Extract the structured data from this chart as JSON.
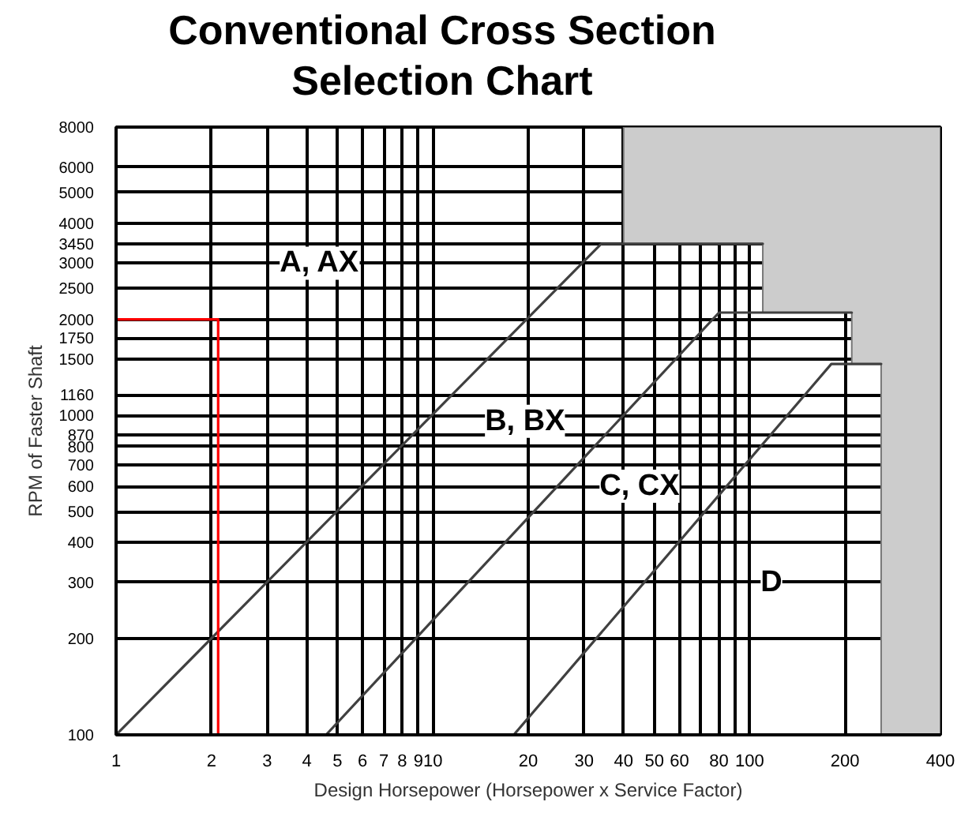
{
  "chart_data": {
    "type": "line",
    "title": "Conventional Cross Section\nSelection Chart",
    "xlabel": "Design Horsepower (Horsepower x Service Factor)",
    "ylabel": "RPM of Faster Shaft",
    "log": "xy",
    "xlim": [
      1,
      400
    ],
    "ylim": [
      100,
      8000
    ],
    "xticks": [
      1,
      2,
      3,
      4,
      5,
      6,
      7,
      8,
      9,
      10,
      20,
      30,
      40,
      50,
      60,
      {
        "value": 70,
        "label": null
      },
      80,
      {
        "value": 90,
        "label": null
      },
      100,
      200,
      400
    ],
    "yticks": [
      100,
      200,
      300,
      400,
      500,
      600,
      700,
      800,
      870,
      1000,
      1160,
      1500,
      1750,
      2000,
      2500,
      3000,
      3450,
      4000,
      5000,
      6000,
      8000
    ],
    "grid": true,
    "series": [
      {
        "type": "area",
        "color": "#cccccc",
        "x": [
          260,
          260,
          210,
          210,
          110,
          110,
          40,
          40,
          400,
          400
        ],
        "values": [
          100,
          1450,
          1450,
          2100,
          2100,
          3450,
          3450,
          8000,
          8000,
          100
        ]
      },
      {
        "color": "#404040",
        "x": [
          1,
          34,
          110
        ],
        "values": [
          100,
          3450,
          3450
        ]
      },
      {
        "color": "#404040",
        "x": [
          4.6,
          80,
          210
        ],
        "values": [
          100,
          2100,
          2100
        ]
      },
      {
        "color": "#404040",
        "x": [
          18,
          181,
          260
        ],
        "values": [
          100,
          1450,
          1450
        ]
      },
      {
        "color": "#ff0000",
        "x": [
          1,
          2.1,
          2.1
        ],
        "values": [
          2000,
          2000,
          100
        ]
      }
    ],
    "annotations": [
      "A, AX",
      "B, BX",
      "C, CX",
      "D"
    ]
  }
}
